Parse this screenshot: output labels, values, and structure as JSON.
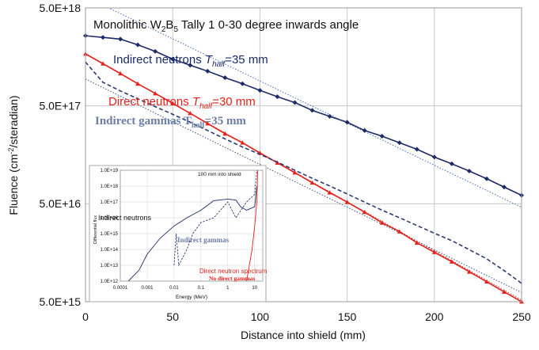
{
  "chart_data": [
    {
      "type": "line",
      "title": [
        "Monolithic W",
        "2",
        "B",
        "5",
        " Tally 1 0-30 degree inwards angle"
      ],
      "xlabel": "Distance into shield (mm)",
      "ylabel": [
        "Fluence  (cm",
        "-2",
        "/steradian)"
      ],
      "xlim": [
        0,
        250
      ],
      "xticks": [
        0,
        50,
        100,
        150,
        200,
        250
      ],
      "ylim": [
        5000000000000000.0,
        5e+18
      ],
      "ylog": true,
      "yticks": [
        {
          "value": 5000000000000000.0,
          "label": "5.0E+15"
        },
        {
          "value": 5e+16,
          "label": "5.0E+16"
        },
        {
          "value": 5e+17,
          "label": "5.0E+17"
        },
        {
          "value": 5e+18,
          "label": "5.0E+18"
        }
      ],
      "grid": true,
      "x": [
        0,
        10,
        20,
        30,
        40,
        50,
        60,
        70,
        80,
        90,
        100,
        110,
        120,
        130,
        140,
        150,
        160,
        170,
        180,
        190,
        200,
        210,
        220,
        230,
        240,
        250
      ],
      "series": [
        {
          "name": [
            "Indirect neutrons ",
            "T",
            "half",
            "=35 mm"
          ],
          "color": "#1c2a66",
          "dash": false,
          "marker": "diamond",
          "values": [
            2.6e+18,
            2.5e+18,
            2.4e+18,
            2.1e+18,
            1.8e+18,
            1.5e+18,
            1.3e+18,
            1.13e+18,
            9.7e+17,
            8.4e+17,
            7.2e+17,
            6.2e+17,
            5.4e+17,
            4.5e+17,
            3.9e+17,
            3.4e+17,
            2.8e+17,
            2.45e+17,
            2.1e+17,
            1.8e+17,
            1.5e+17,
            1.28e+17,
            1.08e+17,
            9e+16,
            7.4e+16,
            6.1e+16
          ]
        },
        {
          "name": [
            "Direct neutrons ",
            "T",
            "half",
            "=30 mm"
          ],
          "color": "#e8201a",
          "dash": false,
          "marker": "triangle",
          "values": [
            1.7e+18,
            1.35e+18,
            1.07e+18,
            8.4e+17,
            6.7e+17,
            5.3e+17,
            4.2e+17,
            3.3e+17,
            2.6e+17,
            2.1e+17,
            1.65e+17,
            1.31e+17,
            1.04e+17,
            8.2e+16,
            6.5e+16,
            5.2e+16,
            4.1e+16,
            3.2e+16,
            2.6e+16,
            2e+16,
            1.6e+16,
            1.28e+16,
            1.01e+16,
            8000000000000000.0,
            6300000000000000.0,
            5000000000000000.0
          ]
        },
        {
          "name": [
            "Indirect gammas ",
            "T",
            "half",
            "=35 mm"
          ],
          "color": "#2a3a72",
          "dash": true,
          "marker": "none",
          "values": [
            1.4e+18,
            8.7e+17,
            7.1e+17,
            5.9e+17,
            4.9e+17,
            4.1e+17,
            3.4e+17,
            2.8e+17,
            2.3e+17,
            1.9e+17,
            1.6e+17,
            1.33e+17,
            1.1e+17,
            9.1e+16,
            7.6e+16,
            6.3e+16,
            5.2e+16,
            4.3e+16,
            3.6e+16,
            3e+16,
            2.5e+16,
            2.1e+16,
            1.7e+16,
            1.37e+16,
            1.04e+16,
            7700000000000000.0
          ]
        }
      ],
      "fits": [
        {
          "color": "#3a6fc4",
          "x": [
            0,
            250
          ],
          "values": [
            6.5e+18,
            4.6e+16
          ]
        },
        {
          "color": "#c0302a",
          "x": [
            0,
            250
          ],
          "values": [
            1.68e+18,
            5200000000000000.0
          ]
        },
        {
          "color": "#3a4f90",
          "x": [
            0,
            250
          ],
          "values": [
            9.4e+17,
            6200000000000000.0
          ]
        }
      ]
    },
    {
      "type": "line",
      "title": "100 mm into shield",
      "xlabel": "Energy (MeV)",
      "ylabel": "Differential flux",
      "xlog": true,
      "ylog": true,
      "xlim": [
        0.0001,
        20
      ],
      "xticks": [
        0.0001,
        0.001,
        0.01,
        0.1,
        1,
        10
      ],
      "ylim": [
        1000000000000.0,
        1e+19
      ],
      "yticks": [
        {
          "value": 1000000000000.0,
          "label": "1.0E+12"
        },
        {
          "value": 10000000000000.0,
          "label": "1.0E+13"
        },
        {
          "value": 100000000000000.0,
          "label": "1.0E+14"
        },
        {
          "value": 1000000000000000.0,
          "label": "1.0E+15"
        },
        {
          "value": 1e+16,
          "label": "1.0E+16"
        },
        {
          "value": 1e+17,
          "label": "1.0E+17"
        },
        {
          "value": 1e+18,
          "label": "1.0E+18"
        },
        {
          "value": 1e+19,
          "label": "1.0E+19"
        }
      ],
      "grid": true,
      "annotations": [
        "Indirect neutrons",
        "Indirect gammas",
        "Direct neutron spectrum",
        "No direct gammas"
      ],
      "series": [
        {
          "color": "#1c2a66",
          "dash": false,
          "x": [
            0.0002,
            0.0005,
            0.001,
            0.003,
            0.01,
            0.03,
            0.1,
            0.3,
            1,
            2,
            3,
            5,
            10,
            12
          ],
          "values": [
            1000000000000.0,
            5000000000000.0,
            50000000000000.0,
            500000000000000.0,
            3000000000000000.0,
            1e+16,
            3e+16,
            1.2e+17,
            1.5e+17,
            1.3e+17,
            5e+16,
            3e+16,
            5e+16,
            1e+18
          ]
        },
        {
          "color": "#2a3a72",
          "dash": true,
          "x": [
            0.01,
            0.012,
            0.015,
            0.03,
            0.05,
            0.1,
            0.3,
            1,
            2,
            5,
            10,
            12
          ],
          "values": [
            10000000000000.0,
            1000000000000000.0,
            10000000000000.0,
            100000000000000.0,
            1000000000000000.0,
            5000000000000000.0,
            1e+16,
            1e+17,
            1e+16,
            1e+17,
            3e+17,
            1e+19
          ]
        },
        {
          "color": "#e8201a",
          "dash": false,
          "x": [
            5,
            8,
            10,
            12,
            13
          ],
          "values": [
            1000000000000.0,
            100000000000000.0,
            3000000000000000.0,
            1e+17,
            1e+19
          ]
        }
      ]
    }
  ]
}
